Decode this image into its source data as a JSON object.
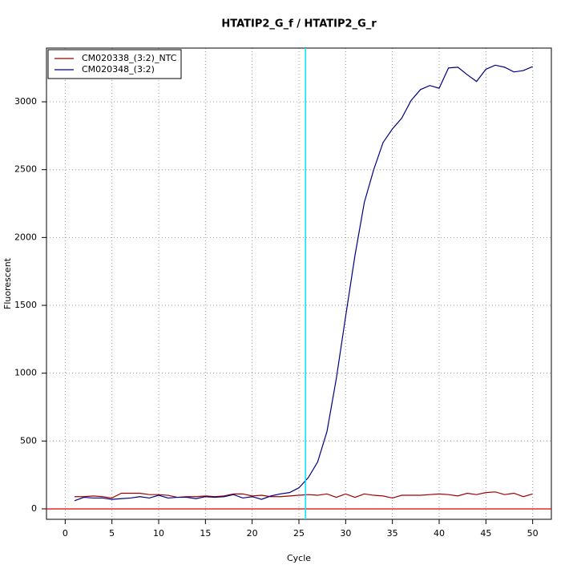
{
  "chart_data": {
    "type": "line",
    "title": "HTATIP2_G_f / HTATIP2_G_r",
    "x_label": "Cycle",
    "y_label": "Fluorescent",
    "x": [
      1,
      2,
      3,
      4,
      5,
      6,
      7,
      8,
      9,
      10,
      11,
      12,
      13,
      14,
      15,
      16,
      17,
      18,
      19,
      20,
      21,
      22,
      23,
      24,
      25,
      26,
      27,
      28,
      29,
      30,
      31,
      32,
      33,
      34,
      35,
      36,
      37,
      38,
      39,
      40,
      41,
      42,
      43,
      44,
      45,
      46,
      47,
      48,
      49,
      50
    ],
    "series": [
      {
        "name": "CM020338_(3:2)_NTC",
        "color": "#a00000",
        "values": [
          90,
          90,
          95,
          90,
          80,
          115,
          115,
          115,
          105,
          105,
          100,
          85,
          90,
          90,
          95,
          90,
          95,
          110,
          110,
          95,
          100,
          90,
          90,
          95,
          100,
          105,
          100,
          110,
          85,
          110,
          85,
          110,
          100,
          95,
          80,
          100,
          100,
          100,
          105,
          110,
          105,
          95,
          115,
          105,
          120,
          125,
          105,
          115,
          90,
          110
        ]
      },
      {
        "name": "CM020348_(3:2)",
        "color": "#000080",
        "values": [
          60,
          85,
          80,
          80,
          70,
          75,
          80,
          90,
          80,
          100,
          80,
          85,
          85,
          75,
          90,
          85,
          90,
          105,
          80,
          90,
          70,
          95,
          110,
          120,
          155,
          230,
          345,
          570,
          960,
          1420,
          1870,
          2260,
          2500,
          2700,
          2800,
          2880,
          3010,
          3090,
          3120,
          3100,
          3250,
          3255,
          3200,
          3150,
          3240,
          3270,
          3255,
          3220,
          3230,
          3260
        ]
      }
    ],
    "xlim": [
      -2,
      52
    ],
    "ylim": [
      -77,
      3396
    ],
    "xticks": [
      0,
      5,
      10,
      15,
      20,
      25,
      30,
      35,
      40,
      45,
      50
    ],
    "yticks": [
      0,
      500,
      1000,
      1500,
      2000,
      2500,
      3000
    ],
    "grid": true,
    "legend": "top-left",
    "threshold_x": 25.7,
    "threshold_color": "#00e5ff",
    "baseline_y": 0,
    "baseline_color": "#dd0000"
  }
}
